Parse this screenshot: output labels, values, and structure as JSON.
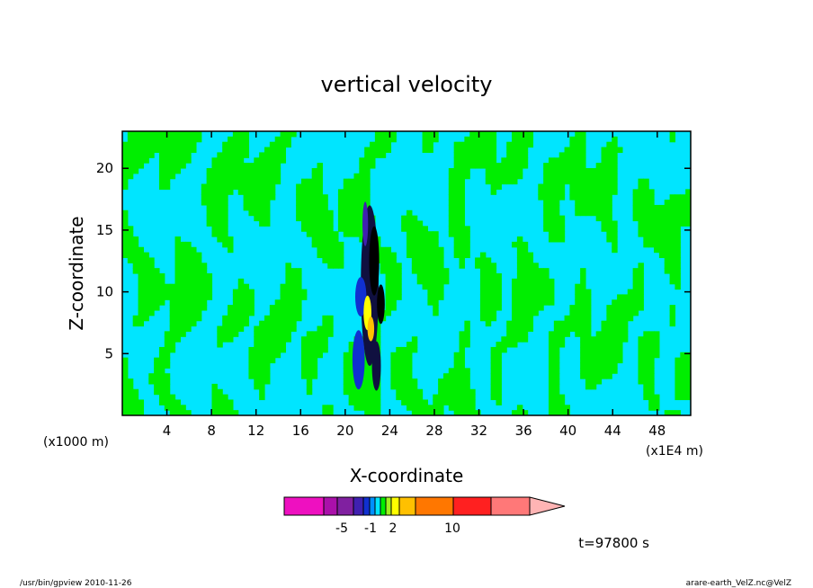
{
  "chart_data": {
    "type": "heatmap",
    "title": "vertical velocity",
    "xlabel": "X-coordinate",
    "ylabel": "Z-coordinate",
    "x_unit_left": "(x1000 m)",
    "x_unit_right": "(x1E4 m)",
    "xlim": [
      0,
      51
    ],
    "ylim": [
      0,
      23
    ],
    "x_ticks": [
      "4",
      "8",
      "12",
      "16",
      "20",
      "24",
      "28",
      "32",
      "36",
      "40",
      "44",
      "48"
    ],
    "y_ticks": [
      "5",
      "10",
      "15",
      "20"
    ],
    "colors": {
      "negative": "#00e5ff",
      "positive": "#00ee00",
      "contour": "#000000"
    },
    "colorbar": {
      "colors": [
        "#ee10c0",
        "#aa10aa",
        "#8020a0",
        "#4020b0",
        "#1030d0",
        "#0090ff",
        "#00e5ff",
        "#00ee00",
        "#a0f020",
        "#ffff00",
        "#ffc000",
        "#ff7700",
        "#ff2020",
        "#ff7878",
        "#ffb4b4"
      ],
      "labels": [
        "-5",
        "-1",
        "2",
        "10"
      ]
    },
    "time_label": "t=97800 s"
  },
  "footer": {
    "left": "/usr/bin/gpview   2010-11-26",
    "right": "arare-earth_VelZ.nc@VelZ"
  }
}
